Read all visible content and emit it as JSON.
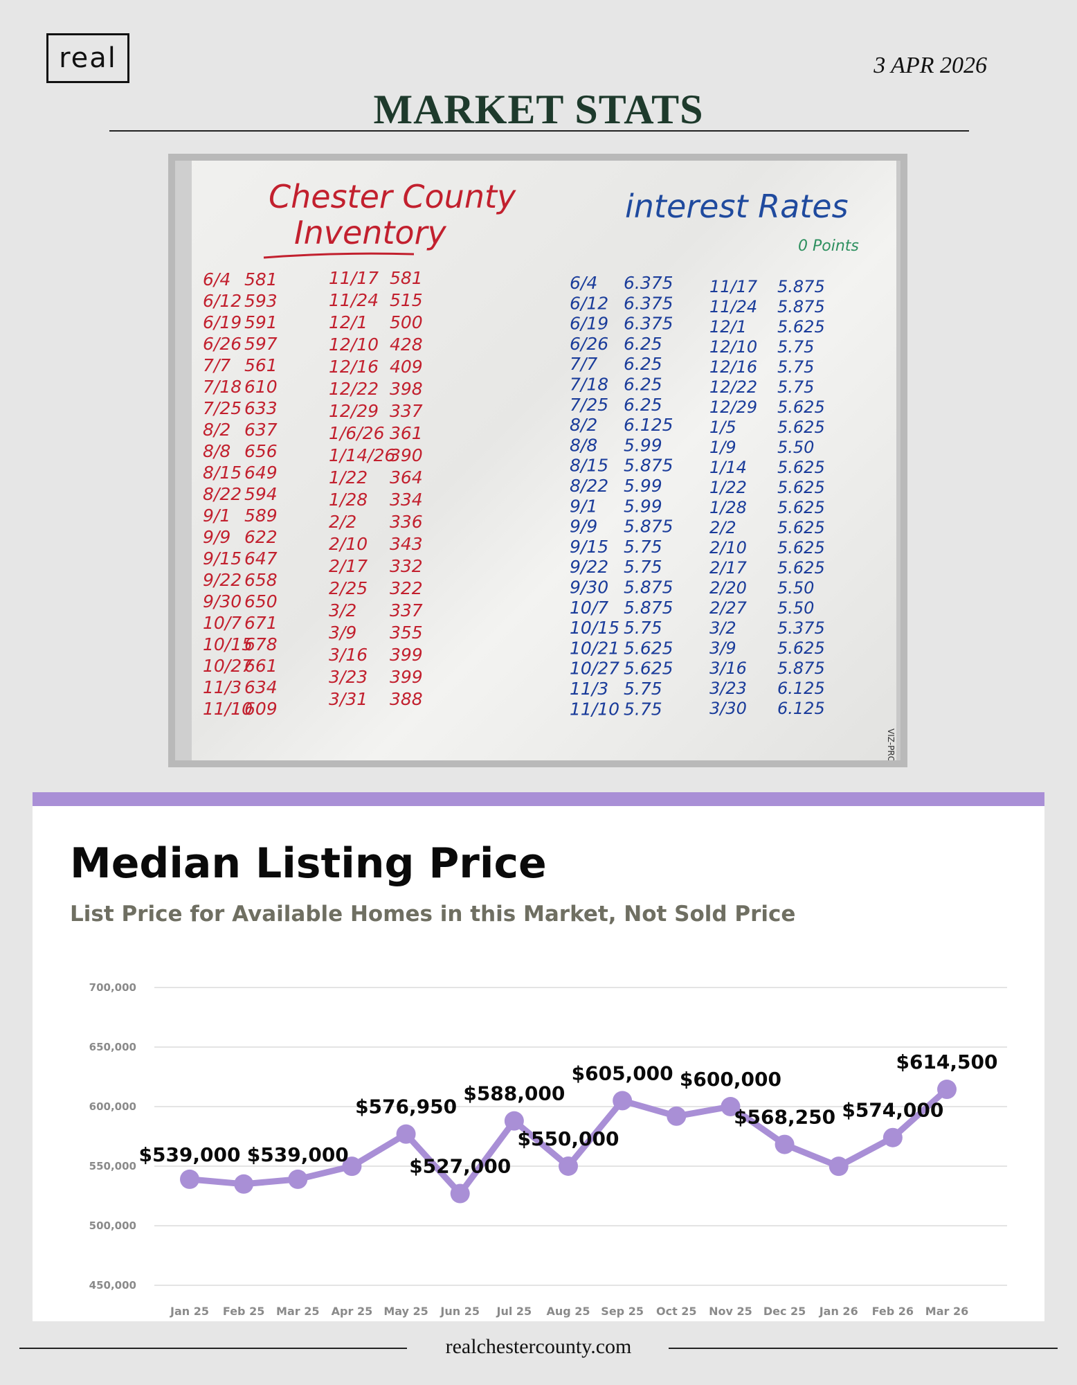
{
  "header": {
    "logo_text": "real",
    "date": "3 APR 2026",
    "title": "MARKET STATS"
  },
  "whiteboard": {
    "inventory_title_line1": "Chester County",
    "inventory_title_line2": "Inventory",
    "rates_title": "interest Rates",
    "rates_note": "0 Points",
    "inventory_col1": [
      [
        "6/4",
        "581"
      ],
      [
        "6/12",
        "593"
      ],
      [
        "6/19",
        "591"
      ],
      [
        "6/26",
        "597"
      ],
      [
        "7/7",
        "561"
      ],
      [
        "7/18",
        "610"
      ],
      [
        "7/25",
        "633"
      ],
      [
        "8/2",
        "637"
      ],
      [
        "8/8",
        "656"
      ],
      [
        "8/15",
        "649"
      ],
      [
        "8/22",
        "594"
      ],
      [
        "9/1",
        "589"
      ],
      [
        "9/9",
        "622"
      ],
      [
        "9/15",
        "647"
      ],
      [
        "9/22",
        "658"
      ],
      [
        "9/30",
        "650"
      ],
      [
        "10/7",
        "671"
      ],
      [
        "10/15",
        "678"
      ],
      [
        "10/27",
        "661"
      ],
      [
        "11/3",
        "634"
      ],
      [
        "11/10",
        "609"
      ]
    ],
    "inventory_col2": [
      [
        "11/17",
        "581"
      ],
      [
        "11/24",
        "515"
      ],
      [
        "12/1",
        "500"
      ],
      [
        "12/10",
        "428"
      ],
      [
        "12/16",
        "409"
      ],
      [
        "12/22",
        "398"
      ],
      [
        "12/29",
        "337"
      ],
      [
        "1/6/26",
        "361"
      ],
      [
        "1/14/26",
        "390"
      ],
      [
        "1/22",
        "364"
      ],
      [
        "1/28",
        "334"
      ],
      [
        "2/2",
        "336"
      ],
      [
        "2/10",
        "343"
      ],
      [
        "2/17",
        "332"
      ],
      [
        "2/25",
        "322"
      ],
      [
        "3/2",
        "337"
      ],
      [
        "3/9",
        "355"
      ],
      [
        "3/16",
        "399"
      ],
      [
        "3/23",
        "399"
      ],
      [
        "3/31",
        "388"
      ]
    ],
    "rates_col1": [
      [
        "6/4",
        "6.375"
      ],
      [
        "6/12",
        "6.375"
      ],
      [
        "6/19",
        "6.375"
      ],
      [
        "6/26",
        "6.25"
      ],
      [
        "7/7",
        "6.25"
      ],
      [
        "7/18",
        "6.25"
      ],
      [
        "7/25",
        "6.25"
      ],
      [
        "8/2",
        "6.125"
      ],
      [
        "8/8",
        "5.99"
      ],
      [
        "8/15",
        "5.875"
      ],
      [
        "8/22",
        "5.99"
      ],
      [
        "9/1",
        "5.99"
      ],
      [
        "9/9",
        "5.875"
      ],
      [
        "9/15",
        "5.75"
      ],
      [
        "9/22",
        "5.75"
      ],
      [
        "9/30",
        "5.875"
      ],
      [
        "10/7",
        "5.875"
      ],
      [
        "10/15",
        "5.75"
      ],
      [
        "10/21",
        "5.625"
      ],
      [
        "10/27",
        "5.625"
      ],
      [
        "11/3",
        "5.75"
      ],
      [
        "11/10",
        "5.75"
      ]
    ],
    "rates_col2": [
      [
        "11/17",
        "5.875"
      ],
      [
        "11/24",
        "5.875"
      ],
      [
        "12/1",
        "5.625"
      ],
      [
        "12/10",
        "5.75"
      ],
      [
        "12/16",
        "5.75"
      ],
      [
        "12/22",
        "5.75"
      ],
      [
        "12/29",
        "5.625"
      ],
      [
        "1/5",
        "5.625"
      ],
      [
        "1/9",
        "5.50"
      ],
      [
        "1/14",
        "5.625"
      ],
      [
        "1/22",
        "5.625"
      ],
      [
        "1/28",
        "5.625"
      ],
      [
        "2/2",
        "5.625"
      ],
      [
        "2/10",
        "5.625"
      ],
      [
        "2/17",
        "5.625"
      ],
      [
        "2/20",
        "5.50"
      ],
      [
        "2/27",
        "5.50"
      ],
      [
        "3/2",
        "5.375"
      ],
      [
        "3/9",
        "5.625"
      ],
      [
        "3/16",
        "5.875"
      ],
      [
        "3/23",
        "6.125"
      ],
      [
        "3/30",
        "6.125"
      ]
    ],
    "brand_mark": "VIZ-PRO"
  },
  "chart_card": {
    "title": "Median Listing Price",
    "subtitle": "List Price for Available Homes in this Market, Not Sold Price"
  },
  "chart_data": {
    "type": "line",
    "title": "Median Listing Price",
    "subtitle": "List Price for Available Homes in this Market, Not Sold Price",
    "categories": [
      "Jan 25",
      "Feb 25",
      "Mar 25",
      "Apr 25",
      "May 25",
      "Jun 25",
      "Jul 25",
      "Aug 25",
      "Sep 25",
      "Oct 25",
      "Nov 25",
      "Dec 25",
      "Jan 26",
      "Feb 26",
      "Mar 26"
    ],
    "values": [
      539000,
      535000,
      539000,
      549900,
      576950,
      527000,
      588000,
      550000,
      605000,
      592000,
      600000,
      568250,
      549900,
      574000,
      614500
    ],
    "data_labels": [
      "$539,000",
      "",
      "$539,000",
      "",
      "$576,950",
      "$527,000",
      "$588,000",
      "$550,000",
      "$605,000",
      "",
      "$600,000",
      "$568,250",
      "",
      "$574,000",
      "$614,500"
    ],
    "y_ticks": [
      "450,000",
      "500,000",
      "550,000",
      "600,000",
      "650,000",
      "700,000"
    ],
    "ylim": [
      450000,
      700000
    ],
    "grid": true,
    "line_color": "#a98fd6"
  },
  "footer": {
    "website": "realchestercounty.com"
  }
}
